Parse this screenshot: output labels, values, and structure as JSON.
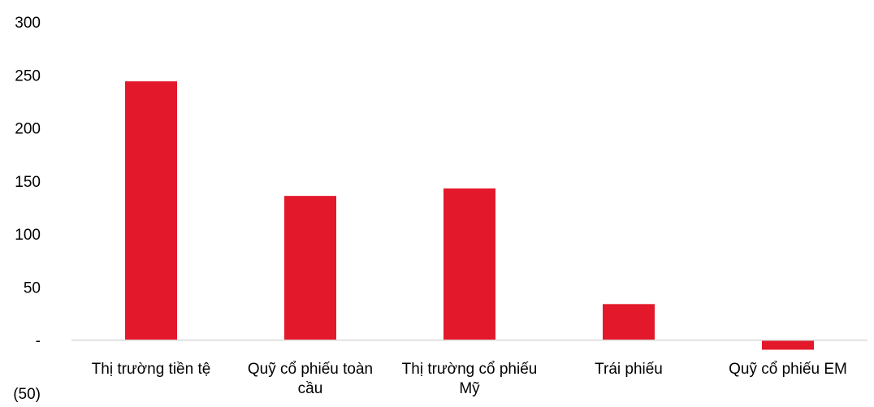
{
  "chart_data": {
    "type": "bar",
    "title": "",
    "xlabel": "",
    "ylabel": "",
    "categories": [
      [
        "Thị trường tiền tệ"
      ],
      [
        "Quỹ cổ phiếu toàn",
        "cầu"
      ],
      [
        "Thị trường cổ phiếu",
        "Mỹ"
      ],
      [
        "Trái phiếu"
      ],
      [
        "Quỹ cổ phiếu EM"
      ]
    ],
    "values": [
      244,
      136,
      143,
      34,
      -9
    ],
    "ylim": [
      -50,
      300
    ],
    "yticks": [
      -50,
      0,
      50,
      100,
      150,
      200,
      250,
      300
    ],
    "ytick_labels": [
      "(50)",
      "-",
      "50",
      "100",
      "150",
      "200",
      "250",
      "300"
    ],
    "bar_color": "#e3192b",
    "axis_color": "#d9d9d9",
    "grid": false,
    "legend": "none"
  }
}
